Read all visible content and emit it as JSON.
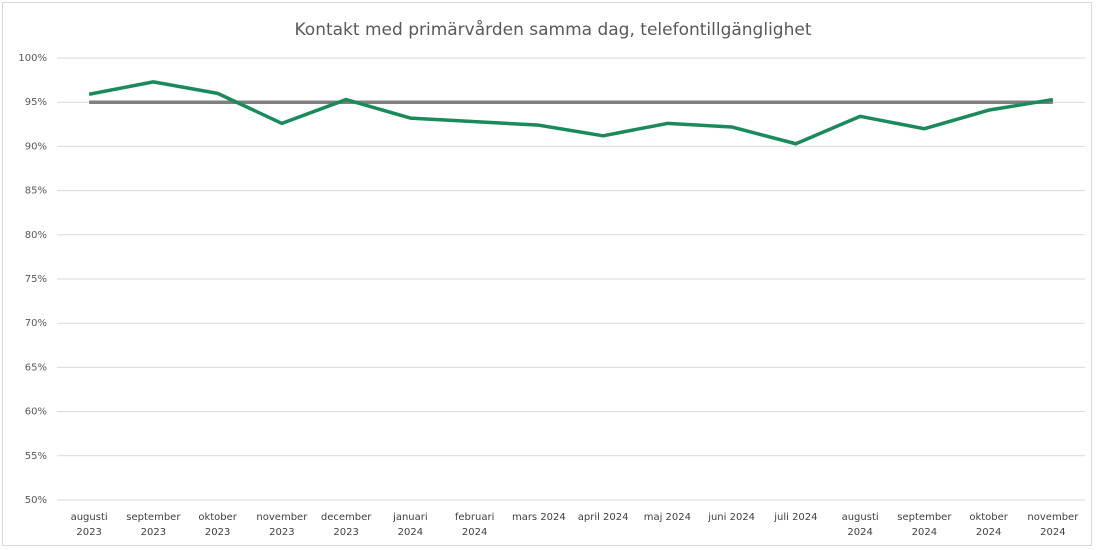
{
  "chart_data": {
    "type": "line",
    "title": "Kontakt med primärvården samma dag, telefontillgänglighet",
    "categories": [
      "augusti 2023",
      "september 2023",
      "oktober 2023",
      "november 2023",
      "december 2023",
      "januari 2024",
      "februari 2024",
      "mars 2024",
      "april 2024",
      "maj 2024",
      "juni 2024",
      "juli 2024",
      "augusti 2024",
      "september 2024",
      "oktober 2024",
      "november 2024"
    ],
    "series": [
      {
        "color": "#1a8a5a",
        "values": [
          95.9,
          97.3,
          96.0,
          92.6,
          95.3,
          93.2,
          92.8,
          92.4,
          91.2,
          92.6,
          92.2,
          90.3,
          93.4,
          92.0,
          94.1,
          95.3
        ]
      },
      {
        "color": "#7f7f7f",
        "values": [
          95,
          95,
          95,
          95,
          95,
          95,
          95,
          95,
          95,
          95,
          95,
          95,
          95,
          95,
          95,
          95
        ]
      }
    ],
    "ylim": [
      50,
      100
    ],
    "yticks": [
      {
        "value": 50,
        "label": "50%"
      },
      {
        "value": 55,
        "label": "55%"
      },
      {
        "value": 60,
        "label": "60%"
      },
      {
        "value": 65,
        "label": "65%"
      },
      {
        "value": 70,
        "label": "70%"
      },
      {
        "value": 75,
        "label": "75%"
      },
      {
        "value": 80,
        "label": "80%"
      },
      {
        "value": 85,
        "label": "85%"
      },
      {
        "value": 90,
        "label": "90%"
      },
      {
        "value": 95,
        "label": "95%"
      },
      {
        "value": 100,
        "label": "100%"
      }
    ],
    "grid": true
  }
}
